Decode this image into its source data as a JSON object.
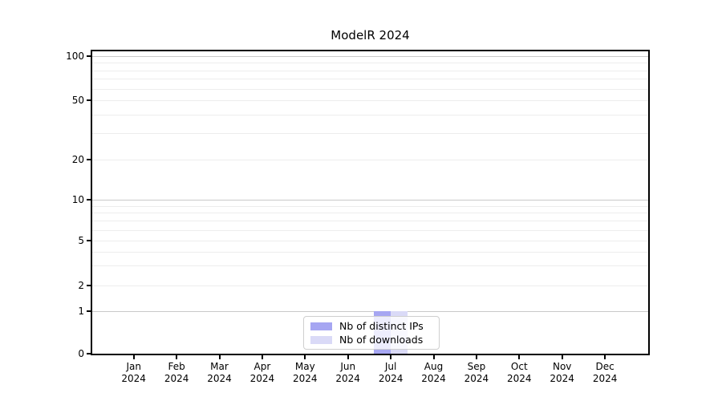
{
  "chart_data": {
    "type": "bar",
    "title": "ModelR 2024",
    "categories": [
      "Jan 2024",
      "Feb 2024",
      "Mar 2024",
      "Apr 2024",
      "May 2024",
      "Jun 2024",
      "Jul 2024",
      "Aug 2024",
      "Sep 2024",
      "Oct 2024",
      "Nov 2024",
      "Dec 2024"
    ],
    "series": [
      {
        "name": "Nb of distinct IPs",
        "color": "#a6a6f2",
        "values": [
          0,
          0,
          0,
          0,
          0,
          0,
          1,
          0,
          0,
          0,
          0,
          0
        ]
      },
      {
        "name": "Nb of downloads",
        "color": "#dadaf7",
        "values": [
          0,
          0,
          0,
          0,
          0,
          0,
          1,
          0,
          0,
          0,
          0,
          0
        ]
      }
    ],
    "y_axis": {
      "scale": "symlog",
      "tick_values": [
        0,
        1,
        2,
        5,
        10,
        20,
        50,
        100
      ],
      "tick_labels": [
        "0",
        "1",
        "2",
        "5",
        "10",
        "20",
        "50",
        "100"
      ],
      "ylim": [
        0,
        110
      ]
    },
    "x_axis": {
      "month_lines": [
        "Jan",
        "Feb",
        "Mar",
        "Apr",
        "May",
        "Jun",
        "Jul",
        "Aug",
        "Sep",
        "Oct",
        "Nov",
        "Dec"
      ],
      "year_line": "2024"
    },
    "legend": {
      "position": "lower center",
      "entries": [
        "Nb of distinct IPs",
        "Nb of downloads"
      ]
    },
    "grid": true,
    "colors": {
      "major_grid": "#c9c9c9",
      "minor_grid": "#ededed",
      "axis": "#000000",
      "background": "#ffffff"
    }
  }
}
